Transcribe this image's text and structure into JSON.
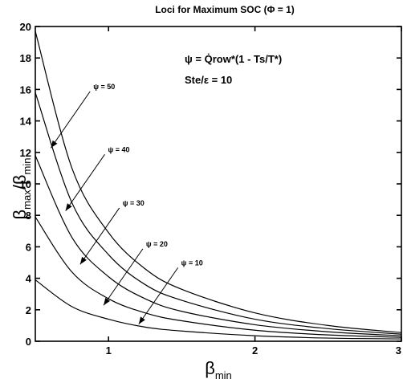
{
  "chart_data": {
    "type": "line",
    "title": "Loci for Maximum SOC (Φ = 1)",
    "xlabel": {
      "main": "β",
      "sub": "min"
    },
    "ylabel": {
      "main": "β",
      "sub1": "max",
      "slash": "/β",
      "sub2": "min"
    },
    "xlim": [
      0.5,
      3
    ],
    "ylim": [
      0,
      20
    ],
    "x_ticks": [
      1,
      2,
      3
    ],
    "y_ticks": [
      0,
      2,
      4,
      6,
      8,
      10,
      12,
      14,
      16,
      18,
      20
    ],
    "annotations": {
      "equation": "ψ = Q̇row*(1 - Ts/T*)",
      "ratio": "Ste/ε = 10"
    },
    "series": [
      {
        "name": "ψ = 10",
        "label": "ψ = 10",
        "x": [
          0.5,
          0.75,
          1,
          1.25,
          1.5,
          2,
          2.5,
          3
        ],
        "y": [
          3.9,
          2.2,
          1.4,
          0.9,
          0.65,
          0.35,
          0.2,
          0.15
        ],
        "arrow_at": [
          1.2,
          1.0
        ]
      },
      {
        "name": "ψ = 20",
        "label": "ψ = 20",
        "x": [
          0.5,
          0.75,
          1,
          1.25,
          1.5,
          2,
          2.5,
          3
        ],
        "y": [
          7.9,
          4.4,
          2.7,
          1.8,
          1.3,
          0.7,
          0.4,
          0.25
        ],
        "arrow_at": [
          0.96,
          2.2
        ]
      },
      {
        "name": "ψ = 30",
        "label": "ψ = 30",
        "x": [
          0.5,
          0.75,
          1,
          1.25,
          1.5,
          2,
          2.5,
          3
        ],
        "y": [
          11.8,
          6.6,
          4.1,
          2.7,
          1.9,
          1.05,
          0.6,
          0.35
        ],
        "arrow_at": [
          0.8,
          4.8
        ]
      },
      {
        "name": "ψ = 40",
        "label": "ψ = 40",
        "x": [
          0.5,
          0.75,
          1,
          1.25,
          1.5,
          2,
          2.5,
          3
        ],
        "y": [
          15.8,
          8.8,
          5.5,
          3.6,
          2.6,
          1.4,
          0.8,
          0.45
        ],
        "arrow_at": [
          0.7,
          8.2
        ]
      },
      {
        "name": "ψ = 50",
        "label": "ψ = 50",
        "x": [
          0.5,
          0.75,
          1,
          1.25,
          1.5,
          2,
          2.5,
          3
        ],
        "y": [
          19.7,
          11.0,
          6.9,
          4.6,
          3.3,
          1.8,
          1.0,
          0.55
        ],
        "arrow_at": [
          0.6,
          12.2
        ]
      }
    ],
    "grid": false,
    "legend": "none"
  }
}
